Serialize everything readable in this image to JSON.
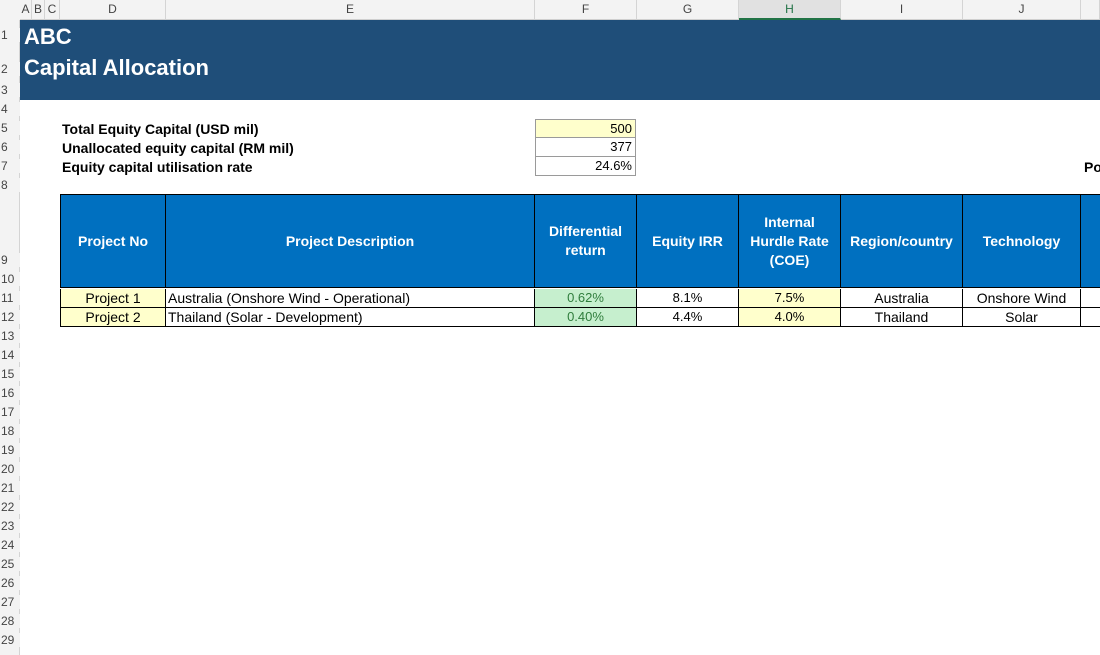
{
  "column_headers": [
    "A",
    "B",
    "C",
    "D",
    "E",
    "F",
    "G",
    "H",
    "I",
    "J"
  ],
  "row_numbers": [
    "1",
    "2",
    "3",
    "4",
    "5",
    "6",
    "7",
    "8",
    "9",
    "10",
    "11",
    "12",
    "13",
    "14",
    "15",
    "16",
    "17",
    "18",
    "19",
    "20",
    "21",
    "22",
    "23",
    "24",
    "25",
    "26",
    "27",
    "28",
    "29"
  ],
  "banner": {
    "company": "ABC",
    "title": "Capital Allocation"
  },
  "summary": [
    {
      "label": "Total Equity Capital (USD mil)",
      "value": "500"
    },
    {
      "label": "Unallocated equity capital (RM mil)",
      "value": "377"
    },
    {
      "label": "Equity capital utilisation rate",
      "value": "24.6%"
    }
  ],
  "cut_text": "Po",
  "table": {
    "headers": [
      "Project No",
      "Project Description",
      "Differential return",
      "Equity IRR",
      "Internal Hurdle Rate (COE)",
      "Region/country",
      "Technology"
    ],
    "rows": [
      [
        "Project 1",
        "Australia (Onshore Wind - Operational)",
        "0.62%",
        "8.1%",
        "7.5%",
        "Australia",
        "Onshore Wind"
      ],
      [
        "Project 2",
        "Thailand (Solar - Development)",
        "0.40%",
        "4.4%",
        "4.0%",
        "Thailand",
        "Solar"
      ]
    ]
  },
  "colors": {
    "banner": "#1f4e79",
    "table_header": "#0070c0",
    "input_yellow": "#ffffcc",
    "positive_green": "#c6efce"
  }
}
